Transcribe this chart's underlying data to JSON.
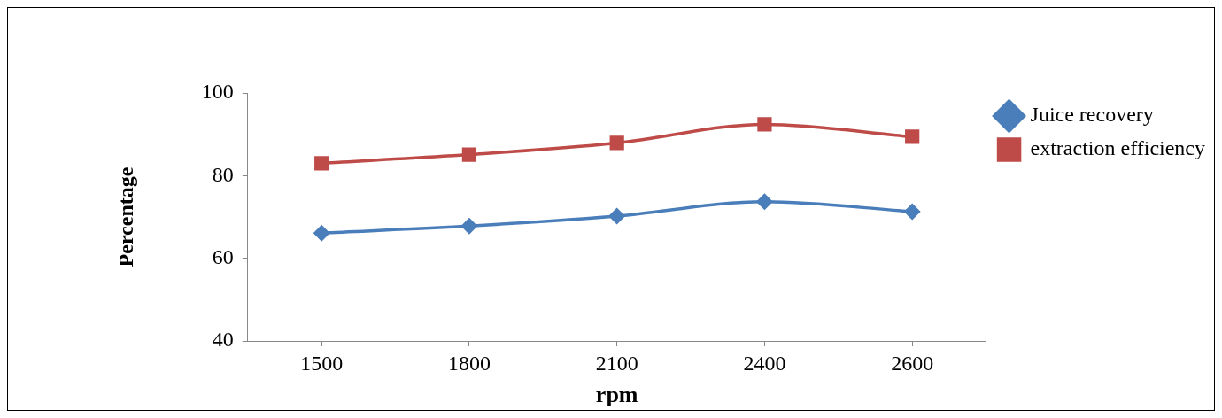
{
  "chart_data": {
    "type": "line",
    "xlabel": "rpm",
    "ylabel": "Percentage",
    "categories": [
      "1500",
      "1800",
      "2100",
      "2400",
      "2600"
    ],
    "series": [
      {
        "name": "Juice recovery",
        "color": "#4a7ebb",
        "marker": "diamond",
        "values": [
          66.1,
          67.8,
          70.2,
          73.7,
          71.3
        ]
      },
      {
        "name": "extraction efficiency",
        "color": "#be4b48",
        "marker": "square",
        "values": [
          83.0,
          85.1,
          87.9,
          92.4,
          89.4
        ]
      }
    ],
    "ylim": [
      40,
      100
    ],
    "yticks": [
      40,
      60,
      80,
      100
    ],
    "grid": false,
    "legend": "top right",
    "line_style": "solid"
  }
}
